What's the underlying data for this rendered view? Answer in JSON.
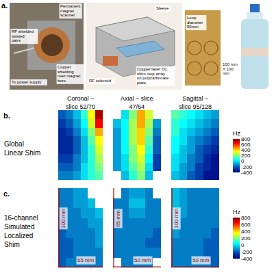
{
  "figure": {
    "panel_a": {
      "letter": "a.",
      "magnet_scanner": "Permanent magnet scanner",
      "twisted_pairs": "RF shielded twisted pairs",
      "power_supply": "To power supply",
      "copper_shielding": "Copper shielding over magnet bore",
      "sleeve": "Sleeve",
      "rf_solenoid": "RF solenoid",
      "shim_array": "Copper layer DC shim loop array on polycarbonate plate",
      "loop_diameter": "Loop diameter 50mm",
      "plate_size": "100 mm X 100 mm"
    },
    "rows": [
      {
        "letter": "b.",
        "label": "Global Linear Shim"
      },
      {
        "letter": "c.",
        "label": "16-channel Simulated Localized Shim"
      }
    ],
    "colorbar": {
      "title": "Hz",
      "color_range": [
        -400,
        800
      ],
      "color_ticks": [
        -400,
        -200,
        0,
        200,
        400,
        600,
        800
      ]
    }
  },
  "chart_data": [
    {
      "type": "heatmap",
      "title": "Coronal – slice 52/70",
      "tick_labels": false,
      "cells": [
        [
          -200,
          -150,
          -50,
          100,
          350,
          750
        ],
        [
          -250,
          -200,
          -100,
          50,
          300,
          650
        ],
        [
          -300,
          -250,
          -150,
          0,
          200,
          450
        ],
        [
          -300,
          -300,
          -200,
          -50,
          150,
          350
        ],
        [
          -300,
          -300,
          -200,
          -50,
          100,
          300
        ],
        [
          -250,
          -250,
          -150,
          -50,
          100,
          250
        ],
        [
          -200,
          -200,
          -150,
          0,
          100,
          200
        ],
        [
          -150,
          -150,
          -100,
          0,
          100,
          150
        ]
      ]
    },
    {
      "type": "heatmap",
      "title": "Axial – slice 47/64",
      "tick_labels": false,
      "cells": [
        [
          null,
          0,
          200,
          450,
          300,
          null
        ],
        [
          -50,
          50,
          250,
          450,
          250,
          -100
        ],
        [
          -100,
          50,
          250,
          400,
          200,
          -150
        ],
        [
          -100,
          50,
          250,
          400,
          150,
          -200
        ],
        [
          -100,
          50,
          200,
          350,
          100,
          -200
        ],
        [
          -100,
          0,
          200,
          300,
          50,
          -250
        ],
        [
          -100,
          0,
          150,
          250,
          0,
          -250
        ],
        [
          null,
          -50,
          100,
          200,
          -50,
          null
        ]
      ]
    },
    {
      "type": "heatmap",
      "title": "Sagittal – slice 95/128",
      "tick_labels": false,
      "cells": [
        [
          150,
          100,
          50,
          0,
          -50,
          -100
        ],
        [
          100,
          50,
          0,
          -50,
          -100,
          -150
        ],
        [
          100,
          0,
          -50,
          -100,
          -150,
          -200
        ],
        [
          50,
          0,
          -100,
          -150,
          -200,
          -250
        ],
        [
          50,
          -50,
          -100,
          -200,
          -250,
          -300
        ],
        [
          0,
          -50,
          -150,
          -200,
          -300,
          -350
        ],
        [
          0,
          -100,
          -150,
          -250,
          -300,
          -350
        ],
        [
          -50,
          -100,
          -200,
          -250,
          -350,
          -350
        ]
      ]
    },
    {
      "type": "heatmap",
      "tick_labels": false,
      "annotations": [
        "100 mm",
        "65 mm"
      ],
      "cells": [
        [
          -150,
          -150,
          -100,
          -100,
          null,
          null
        ],
        [
          -150,
          -150,
          -100,
          -100,
          -50,
          null
        ],
        [
          -150,
          -150,
          -150,
          -100,
          -100,
          -50
        ],
        [
          -200,
          -150,
          -150,
          -150,
          -100,
          -100
        ],
        [
          -200,
          -150,
          -150,
          -150,
          -150,
          -100
        ],
        [
          -200,
          -200,
          -150,
          -150,
          -150,
          -100
        ],
        [
          -200,
          -200,
          -150,
          -150,
          -150,
          -150
        ],
        [
          -200,
          -150,
          -150,
          -150,
          -150,
          -150
        ]
      ]
    },
    {
      "type": "heatmap",
      "tick_labels": false,
      "annotations": [
        "65 mm",
        "50 mm"
      ],
      "cells": [
        [
          null,
          -150,
          -100,
          -100,
          -150,
          null
        ],
        [
          -150,
          -150,
          -50,
          -50,
          -150,
          -150
        ],
        [
          -150,
          -150,
          -100,
          -100,
          -150,
          -150
        ],
        [
          -150,
          -150,
          -150,
          -150,
          -150,
          -150
        ],
        [
          -150,
          -150,
          -150,
          -150,
          -150,
          -200
        ],
        [
          -150,
          -150,
          -150,
          -150,
          -200,
          -200
        ],
        [
          -150,
          -150,
          -150,
          -150,
          -150,
          -150
        ],
        [
          null,
          -150,
          -150,
          -150,
          -150,
          null
        ]
      ]
    },
    {
      "type": "heatmap",
      "tick_labels": false,
      "annotations": [
        "100 mm",
        "50 mm"
      ],
      "cells": [
        [
          -50,
          -100,
          -150,
          -150,
          -150,
          -150
        ],
        [
          -50,
          -100,
          -150,
          -150,
          -150,
          -150
        ],
        [
          -100,
          -100,
          -150,
          -150,
          -150,
          -150
        ],
        [
          -100,
          -150,
          -150,
          -150,
          -150,
          -150
        ],
        [
          -100,
          -150,
          -150,
          -150,
          -150,
          -200
        ],
        [
          -150,
          -150,
          -150,
          -150,
          -200,
          -200
        ],
        [
          -150,
          -150,
          -150,
          -150,
          -200,
          -200
        ],
        [
          -150,
          -150,
          -150,
          -150,
          -150,
          -200
        ]
      ]
    }
  ]
}
